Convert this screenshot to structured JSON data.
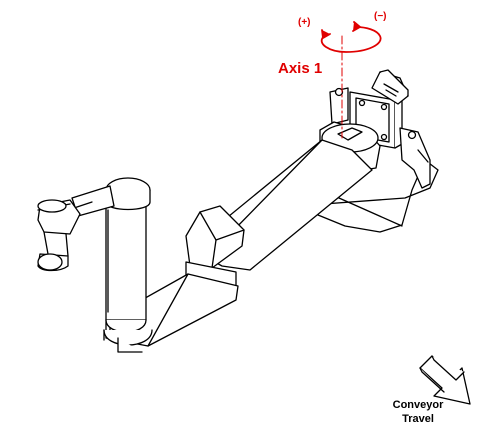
{
  "axis": {
    "label": "Axis 1",
    "positive": "(+)",
    "negative": "(−)"
  },
  "conveyor": {
    "line1": "Conveyor",
    "line2": "Travel"
  },
  "colors": {
    "annotation": "#e00000",
    "linework": "#000000",
    "background": "#ffffff"
  },
  "icons": {
    "rotation": "curved-rotation-arrow-icon",
    "direction": "conveyor-direction-arrow-icon"
  }
}
